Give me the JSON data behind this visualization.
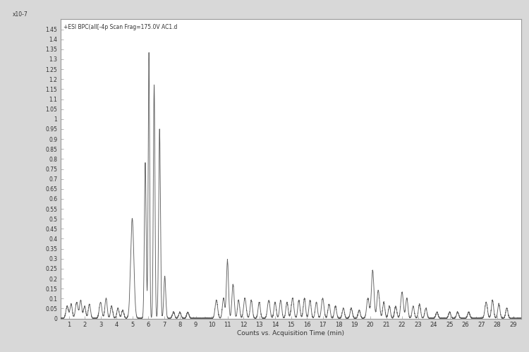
{
  "title": "+ESI BPC(all[-4p Scan Frag=175.0V AC1.d",
  "xlabel": "Counts vs. Acquisition Time (min)",
  "ylim": [
    0,
    1.5
  ],
  "xlim": [
    0.5,
    29.5
  ],
  "yticks": [
    0,
    0.05,
    0.1,
    0.15,
    0.2,
    0.25,
    0.3,
    0.35,
    0.4,
    0.45,
    0.5,
    0.55,
    0.6,
    0.65,
    0.7,
    0.75,
    0.8,
    0.85,
    0.9,
    0.95,
    1.0,
    1.05,
    1.1,
    1.15,
    1.2,
    1.25,
    1.3,
    1.35,
    1.4,
    1.45
  ],
  "ytick_labels": [
    "0",
    "0.05",
    "0.1",
    "0.15",
    "0.2",
    "0.25",
    "0.3",
    "0.35",
    "0.4",
    "0.45",
    "0.5",
    "0.55",
    "0.6",
    "0.65",
    "0.7",
    "0.75",
    "0.8",
    "0.85",
    "0.9",
    "0.95",
    "1",
    "1.05",
    "1.1",
    "1.15",
    "1.2",
    "1.25",
    "1.3",
    "1.35",
    "1.4",
    "1.45"
  ],
  "xticks": [
    1,
    2,
    3,
    4,
    5,
    6,
    7,
    8,
    9,
    10,
    11,
    12,
    13,
    14,
    15,
    16,
    17,
    18,
    19,
    20,
    21,
    22,
    23,
    24,
    25,
    26,
    27,
    28,
    29
  ],
  "line_color": "#606060",
  "background_color": "#d8d8d8",
  "plot_bg_color": "#ffffff",
  "spine_color": "#999999",
  "tick_label_color": "#333333",
  "title_color": "#333333",
  "multiplier_label": "x10-7"
}
